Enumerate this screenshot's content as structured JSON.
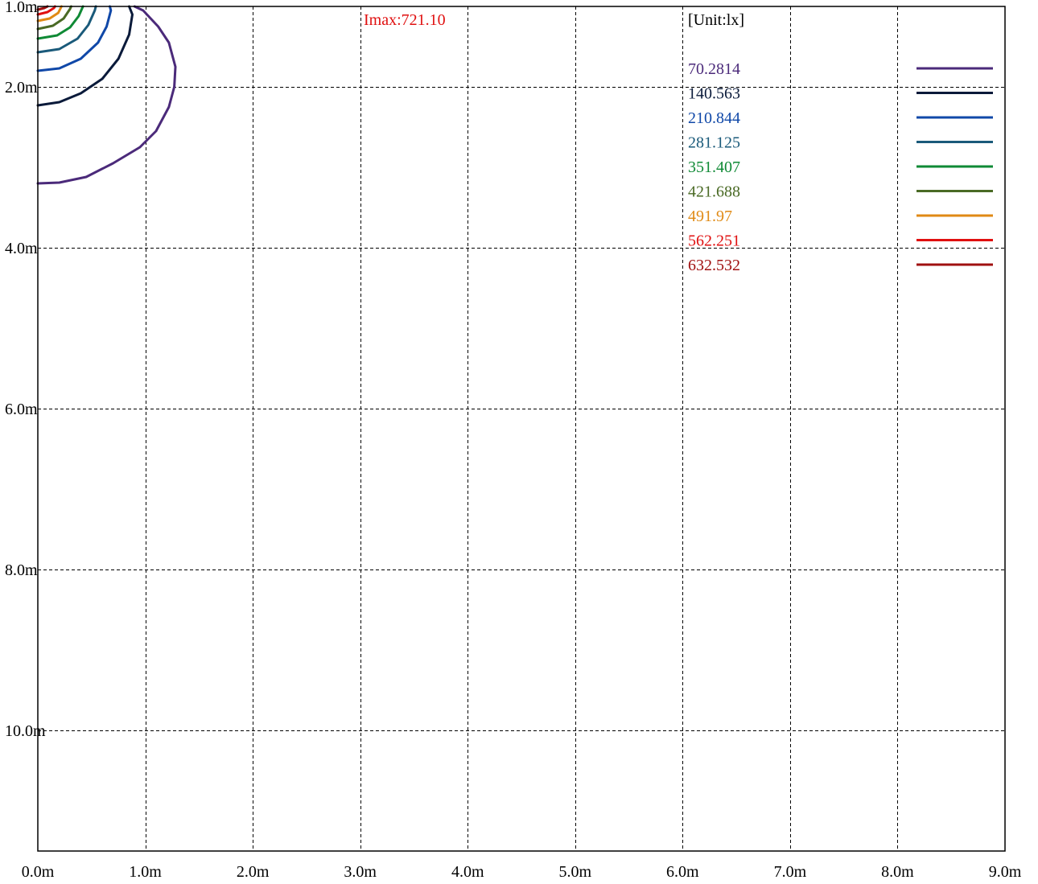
{
  "chart_data": {
    "type": "contour",
    "imax_label": "Imax:721.10",
    "unit_label": "[Unit:lx]",
    "x_axis": {
      "range": [
        0,
        9
      ],
      "ticks": [
        0,
        1,
        2,
        3,
        4,
        5,
        6,
        7,
        8,
        9
      ],
      "tick_labels": [
        "0.0m",
        "1.0m",
        "2.0m",
        "3.0m",
        "4.0m",
        "5.0m",
        "6.0m",
        "7.0m",
        "8.0m",
        "9.0m"
      ]
    },
    "y_axis": {
      "range": [
        1.0,
        11.5
      ],
      "ticks": [
        1,
        2,
        4,
        6,
        8,
        10
      ],
      "tick_labels": [
        "1.0m",
        "2.0m",
        "4.0m",
        "6.0m",
        "8.0m",
        "10.0m"
      ]
    },
    "grid": true,
    "legend_position": "top-right",
    "levels": [
      {
        "label": "70.2814",
        "color": "#4b2a7a",
        "points": [
          [
            0,
            3.2
          ],
          [
            0.2,
            3.19
          ],
          [
            0.45,
            3.12
          ],
          [
            0.7,
            2.95
          ],
          [
            0.95,
            2.75
          ],
          [
            1.1,
            2.55
          ],
          [
            1.22,
            2.25
          ],
          [
            1.27,
            2.0
          ],
          [
            1.28,
            1.75
          ],
          [
            1.22,
            1.45
          ],
          [
            1.12,
            1.25
          ],
          [
            0.98,
            1.05
          ],
          [
            0.9,
            1.0
          ]
        ]
      },
      {
        "label": "140.563",
        "color": "#0a1a3a",
        "points": [
          [
            0,
            2.23
          ],
          [
            0.2,
            2.19
          ],
          [
            0.4,
            2.08
          ],
          [
            0.6,
            1.9
          ],
          [
            0.75,
            1.65
          ],
          [
            0.85,
            1.35
          ],
          [
            0.88,
            1.1
          ],
          [
            0.85,
            1.0
          ]
        ]
      },
      {
        "label": "210.844",
        "color": "#1048a8",
        "points": [
          [
            0,
            1.8
          ],
          [
            0.2,
            1.77
          ],
          [
            0.4,
            1.65
          ],
          [
            0.56,
            1.45
          ],
          [
            0.64,
            1.25
          ],
          [
            0.68,
            1.05
          ],
          [
            0.67,
            1.0
          ]
        ]
      },
      {
        "label": "281.125",
        "color": "#1a5a7a",
        "points": [
          [
            0,
            1.57
          ],
          [
            0.2,
            1.53
          ],
          [
            0.37,
            1.4
          ],
          [
            0.47,
            1.23
          ],
          [
            0.53,
            1.05
          ],
          [
            0.54,
            1.0
          ]
        ]
      },
      {
        "label": "351.407",
        "color": "#0f8a35",
        "points": [
          [
            0,
            1.4
          ],
          [
            0.18,
            1.36
          ],
          [
            0.3,
            1.26
          ],
          [
            0.38,
            1.12
          ],
          [
            0.42,
            1.0
          ]
        ]
      },
      {
        "label": "421.688",
        "color": "#4a6a25",
        "points": [
          [
            0,
            1.28
          ],
          [
            0.14,
            1.24
          ],
          [
            0.24,
            1.15
          ],
          [
            0.3,
            1.03
          ],
          [
            0.31,
            1.0
          ]
        ]
      },
      {
        "label": "491.97",
        "color": "#e08a15",
        "points": [
          [
            0,
            1.18
          ],
          [
            0.11,
            1.15
          ],
          [
            0.19,
            1.08
          ],
          [
            0.22,
            1.0
          ]
        ]
      },
      {
        "label": "562.251",
        "color": "#e01010",
        "points": [
          [
            0,
            1.1
          ],
          [
            0.09,
            1.07
          ],
          [
            0.15,
            1.02
          ],
          [
            0.16,
            1.0
          ]
        ]
      },
      {
        "label": "632.532",
        "color": "#a01010",
        "points": [
          [
            0,
            1.04
          ],
          [
            0.06,
            1.02
          ],
          [
            0.09,
            1.0
          ]
        ]
      }
    ]
  }
}
